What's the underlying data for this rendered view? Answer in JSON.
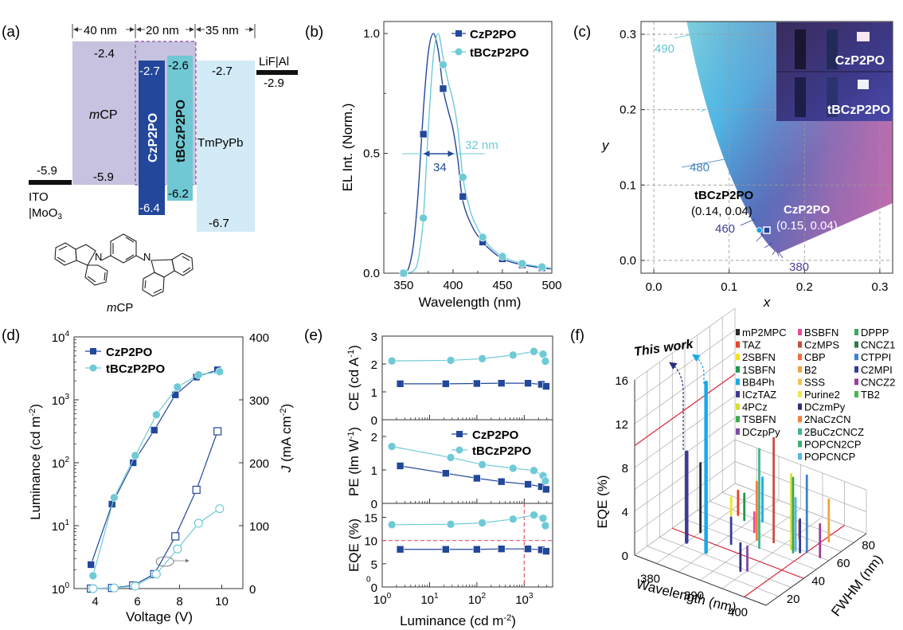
{
  "panel_labels": [
    "(a)",
    "(b)",
    "(c)",
    "(d)",
    "(e)",
    "(f)"
  ],
  "chart_data": [
    {
      "panel": "a",
      "type": "diagram",
      "title": "Energy level diagram",
      "thickness_labels": [
        "40 nm",
        "20 nm",
        "35 nm"
      ],
      "electrodes": [
        {
          "name": "ITO |MoO3",
          "label_line1": "ITO",
          "label_line2": "|MoO",
          "label_sub": "3",
          "level": -5.9,
          "level_label": "-5.9"
        },
        {
          "name": "LiF|Al",
          "label_line1": "LiF|Al",
          "level": -2.9,
          "level_label": "-2.9"
        }
      ],
      "layers": [
        {
          "name": "mCP",
          "label_italic": "m",
          "label_rest": "CP",
          "lumo": -2.4,
          "homo": -5.9,
          "lumo_label": "-2.4",
          "homo_label": "-5.9",
          "color": "#c6c2df"
        },
        {
          "name": "CzP2PO",
          "lumo": -2.7,
          "homo": -6.4,
          "lumo_label": "-2.7",
          "homo_label": "-6.4",
          "color": "#22479b"
        },
        {
          "name": "tBCzP2PO",
          "lumo": -2.6,
          "homo": -6.2,
          "lumo_label": "-2.6",
          "homo_label": "-6.2",
          "color": "#6fc8d3"
        },
        {
          "name": "TmPyPb",
          "lumo": -2.7,
          "homo": -6.7,
          "lumo_label": "-2.7",
          "homo_label": "-6.7",
          "color": "#d3ebf6"
        }
      ],
      "molecule_label_italic": "m",
      "molecule_label_rest": "CP",
      "atom_labels": [
        "N",
        "N"
      ]
    },
    {
      "panel": "b",
      "type": "line",
      "xlabel": "Wavelength (nm)",
      "ylabel": "EL Int. (Norm.)",
      "xlim": [
        330,
        500
      ],
      "ylim": [
        0,
        1.05
      ],
      "xticks": [
        350,
        400,
        450,
        500
      ],
      "yticks": [
        0.0,
        0.5,
        1.0
      ],
      "ytick_labels": [
        "0.0",
        "0.5",
        "1.0"
      ],
      "legend": "top-right",
      "series": [
        {
          "name": "CzP2PO",
          "color": "#22479b",
          "marker": "square",
          "curve_x": [
            350,
            355,
            360,
            365,
            370,
            375,
            380,
            385,
            390,
            395,
            400,
            405,
            410,
            420,
            430,
            440,
            450,
            460,
            470,
            480,
            490,
            500
          ],
          "curve_y": [
            0.0,
            0.02,
            0.12,
            0.35,
            0.68,
            0.92,
            1.0,
            0.93,
            0.77,
            0.68,
            0.6,
            0.47,
            0.3,
            0.19,
            0.13,
            0.09,
            0.06,
            0.045,
            0.035,
            0.028,
            0.022,
            0.018
          ],
          "marker_x": [
            350,
            370,
            390,
            410,
            430,
            450,
            470,
            490
          ],
          "marker_y": [
            0.0,
            0.58,
            0.77,
            0.32,
            0.13,
            0.06,
            0.035,
            0.022
          ]
        },
        {
          "name": "tBCzP2PO",
          "color": "#6fcad6",
          "marker": "circle",
          "curve_x": [
            350,
            360,
            365,
            370,
            375,
            380,
            385,
            390,
            395,
            400,
            405,
            410,
            415,
            420,
            430,
            440,
            450,
            460,
            470,
            480,
            490,
            500
          ],
          "curve_y": [
            0.0,
            0.01,
            0.06,
            0.23,
            0.6,
            0.9,
            1.0,
            0.9,
            0.8,
            0.72,
            0.6,
            0.4,
            0.3,
            0.23,
            0.15,
            0.1,
            0.07,
            0.052,
            0.04,
            0.032,
            0.026,
            0.02
          ],
          "marker_x": [
            350,
            370,
            390,
            410,
            430,
            450,
            470,
            490
          ],
          "marker_y": [
            0.0,
            0.23,
            0.87,
            0.4,
            0.15,
            0.07,
            0.04,
            0.026
          ]
        }
      ],
      "annotations": [
        {
          "text": "34",
          "color": "#22479b"
        },
        {
          "text": "32 nm",
          "color": "#6fcad6"
        }
      ]
    },
    {
      "panel": "c",
      "type": "scatter",
      "xlabel": "x",
      "ylabel": "y",
      "xlim": [
        -0.017,
        0.317
      ],
      "ylim": [
        -0.017,
        0.317
      ],
      "xticks": [
        0.0,
        0.1,
        0.2,
        0.3
      ],
      "yticks": [
        0.0,
        0.1,
        0.2,
        0.3
      ],
      "tick_labels": [
        "0.0",
        "0.1",
        "0.2",
        "0.3"
      ],
      "grid": true,
      "wavelength_labels": [
        {
          "text": "490",
          "color": "#5fc6d6"
        },
        {
          "text": "480",
          "color": "#3b7fc1"
        },
        {
          "text": "460",
          "color": "#3d3f93"
        },
        {
          "text": "380",
          "color": "#4e3f9a"
        }
      ],
      "points": [
        {
          "name": "tBCzP2PO",
          "x": 0.14,
          "y": 0.04,
          "coord_label": "(0.14, 0.04)",
          "color": "#1aa2e0",
          "marker": "circle"
        },
        {
          "name": "CzP2PO",
          "x": 0.15,
          "y": 0.04,
          "coord_label": "(0.15, 0.04)",
          "color": "#22479b",
          "marker": "square"
        }
      ],
      "inset_labels": [
        "CzP2PO",
        "tBCzP2PO"
      ]
    },
    {
      "panel": "d",
      "type": "line",
      "xlabel": "Voltage (V)",
      "ylabel_left": "Luminance (cd m-2)",
      "ylabel_right_italic": "J",
      "ylabel_right_rest": " (mA cm",
      "ylabel_right_sup": "-2",
      "xlim": [
        3,
        11
      ],
      "ylim_left_log10": [
        0,
        4
      ],
      "ylim_right": [
        0,
        400
      ],
      "xticks": [
        4,
        6,
        8,
        10
      ],
      "yticks_left_exp": [
        0,
        1,
        2,
        3,
        4
      ],
      "yticks_right": [
        0,
        100,
        200,
        300,
        400
      ],
      "legend": "top-left",
      "series": [
        {
          "name": "CzP2PO",
          "axis": "left",
          "color": "#22479b",
          "marker": "square",
          "filled": true,
          "x": [
            3.8,
            4.8,
            5.8,
            6.8,
            7.8,
            8.8,
            9.8
          ],
          "y": [
            2.4,
            22,
            100,
            330,
            1200,
            2300,
            3000
          ]
        },
        {
          "name": "tBCzP2PO",
          "axis": "left",
          "color": "#6fcad6",
          "marker": "circle",
          "filled": true,
          "x": [
            3.9,
            4.9,
            5.9,
            6.9,
            7.9,
            8.9,
            9.9
          ],
          "y": [
            1.6,
            28,
            130,
            580,
            1600,
            2500,
            2800
          ]
        },
        {
          "name": "CzP2PO J",
          "axis": "right",
          "color": "#22479b",
          "marker": "square",
          "filled": false,
          "x": [
            3.8,
            4.8,
            5.8,
            6.8,
            7.8,
            8.8,
            9.8
          ],
          "y": [
            0,
            1,
            5,
            23,
            83,
            157,
            250
          ]
        },
        {
          "name": "tBCzP2PO J",
          "axis": "right",
          "color": "#6fcad6",
          "marker": "circle",
          "filled": false,
          "x": [
            3.9,
            4.9,
            5.9,
            6.9,
            7.9,
            8.9,
            9.9
          ],
          "y": [
            0,
            1,
            4,
            23,
            63,
            104,
            127
          ]
        }
      ]
    },
    {
      "panel": "e",
      "type": "line",
      "xlabel": "Luminance (cd m-2)",
      "xlim_log10": [
        0,
        3.6
      ],
      "xticks_exp": [
        0,
        1,
        2,
        3
      ],
      "legend": "middle-panel top-right",
      "subplots": [
        {
          "ylabel": "CE (cd A-1)",
          "ylabel_main": "CE (cd A",
          "ylabel_sup": "-1",
          "ylabel_end": ")",
          "ylim": [
            0,
            3
          ],
          "yticks": [
            0,
            1,
            2,
            3
          ],
          "series": [
            {
              "name": "CzP2PO",
              "x": [
                2.4,
                22,
                100,
                330,
                1200,
                2300,
                2900
              ],
              "y": [
                1.29,
                1.29,
                1.3,
                1.31,
                1.31,
                1.27,
                1.2
              ]
            },
            {
              "name": "tBCzP2PO",
              "x": [
                1.6,
                28,
                130,
                580,
                1600,
                2500,
                2800
              ],
              "y": [
                2.11,
                2.13,
                2.19,
                2.32,
                2.45,
                2.35,
                2.1
              ]
            }
          ]
        },
        {
          "ylabel": "PE (lm W-1)",
          "ylabel_main": "PE (lm W",
          "ylabel_sup": "-1",
          "ylabel_end": ")",
          "ylim": [
            0,
            2.5
          ],
          "yticks": [
            0,
            1,
            2
          ],
          "series": [
            {
              "name": "CzP2PO",
              "x": [
                2.4,
                22,
                100,
                330,
                1200,
                2300,
                2900
              ],
              "y": [
                1.12,
                0.9,
                0.75,
                0.65,
                0.57,
                0.5,
                0.42
              ]
            },
            {
              "name": "tBCzP2PO",
              "x": [
                1.6,
                28,
                130,
                580,
                1600,
                2500,
                2800
              ],
              "y": [
                1.7,
                1.37,
                1.16,
                1.05,
                0.98,
                0.83,
                0.67
              ]
            }
          ]
        },
        {
          "ylabel": "EQE (%)",
          "ylabel_main": "EQE (%)",
          "ylabel_sup": "",
          "ylabel_end": "",
          "ylim": [
            0,
            18
          ],
          "yticks": [
            0,
            5,
            10,
            15
          ],
          "extra_tick_label": "0",
          "reference_lines": {
            "hline": 10,
            "vline": 1000,
            "color": "#e05a6b"
          },
          "series": [
            {
              "name": "CzP2PO",
              "x": [
                2.4,
                22,
                100,
                330,
                1200,
                2300,
                2900
              ],
              "y": [
                8.1,
                8.1,
                8.1,
                8.2,
                8.2,
                8.0,
                7.7
              ]
            },
            {
              "name": "tBCzP2PO",
              "x": [
                1.6,
                28,
                130,
                580,
                1600,
                2500,
                2800
              ],
              "y": [
                13.4,
                13.5,
                13.8,
                14.6,
                15.5,
                14.8,
                13.2
              ]
            }
          ]
        }
      ],
      "series_styles": [
        {
          "name": "CzP2PO",
          "color": "#22479b",
          "marker": "square"
        },
        {
          "name": "tBCzP2PO",
          "color": "#6fcad6",
          "marker": "circle"
        }
      ]
    },
    {
      "panel": "f",
      "type": "bar3d",
      "xlabel": "Wavelength (nm)",
      "ylabel": "FWHM (nm)",
      "zlabel": "EQE (%)",
      "xlim": [
        375,
        405
      ],
      "ylim": [
        10,
        90
      ],
      "zlim": [
        0,
        16
      ],
      "xticks": [
        380,
        390,
        400
      ],
      "yticks": [
        20,
        40,
        60,
        80
      ],
      "zticks": [
        0,
        4,
        8,
        12,
        16
      ],
      "annotation": "This work",
      "threshold_lines": {
        "eqe": 10,
        "wavelength": 400,
        "fwhm": 40,
        "color": "#d9233a"
      },
      "legend_columns": [
        [
          {
            "name": "mP2MPC",
            "color": "#2b2b2b"
          },
          {
            "name": "TAZ",
            "color": "#e8432b"
          },
          {
            "name": "2SBFN",
            "color": "#f2e21c"
          },
          {
            "name": "1SBFN",
            "color": "#1d9a4a"
          },
          {
            "name": "BB4Ph",
            "color": "#1aa9e6"
          },
          {
            "name": "ICzTAZ",
            "color": "#3d3b95"
          },
          {
            "name": "4PCz",
            "color": "#d6e02a"
          },
          {
            "name": "TSBFN",
            "color": "#3cae4d"
          },
          {
            "name": "DCzpPy",
            "color": "#7d4aa7"
          }
        ],
        [
          {
            "name": "BSBFN",
            "color": "#ea4c95"
          },
          {
            "name": "CzMPS",
            "color": "#c8503e"
          },
          {
            "name": "CBP",
            "color": "#ef6a4a"
          },
          {
            "name": "B2",
            "color": "#f4a23a"
          },
          {
            "name": "SSS",
            "color": "#f6c05e"
          },
          {
            "name": "Purine2",
            "color": "#f2e84e"
          },
          {
            "name": "DCzmPy",
            "color": "#2e3180"
          },
          {
            "name": "2NaCzCN",
            "color": "#f08040"
          },
          {
            "name": "2BuCzCNCZ",
            "color": "#42b48a"
          },
          {
            "name": "POPCN2CP",
            "color": "#3caf6e"
          },
          {
            "name": "POPCNCP",
            "color": "#5bb4e6"
          }
        ],
        [
          {
            "name": "DPPP",
            "color": "#3da760"
          },
          {
            "name": "CNCZ1",
            "color": "#2e7a4e"
          },
          {
            "name": "CTPPI",
            "color": "#3f82cf"
          },
          {
            "name": "C2MPI",
            "color": "#343b93"
          },
          {
            "name": "CNCZ2",
            "color": "#9b3f9a"
          },
          {
            "name": "TB2",
            "color": "#47b84b"
          }
        ]
      ],
      "bars": [
        {
          "name": "CzP2PO (this work)",
          "wavelength": 380,
          "fwhm": 34,
          "eqe": 8.2,
          "color": "#3d3b95",
          "highlight": true
        },
        {
          "name": "tBCzP2PO (this work)",
          "wavelength": 385,
          "fwhm": 32,
          "eqe": 15.5,
          "color": "#1aa9e6",
          "highlight": true
        },
        {
          "name": "mP2MPC",
          "wavelength": 380,
          "fwhm": 45,
          "eqe": 6.3,
          "color": "#2b2b2b"
        },
        {
          "name": "TAZ",
          "wavelength": 382,
          "fwhm": 68,
          "eqe": 2.2,
          "color": "#e8432b"
        },
        {
          "name": "2SBFN",
          "wavelength": 381,
          "fwhm": 66,
          "eqe": 1.6,
          "color": "#f2e21c"
        },
        {
          "name": "1SBFN",
          "wavelength": 384,
          "fwhm": 66,
          "eqe": 2.4,
          "color": "#1d9a4a"
        },
        {
          "name": "ICzTAZ",
          "wavelength": 387,
          "fwhm": 45,
          "eqe": 2.4,
          "color": "#3d3b95"
        },
        {
          "name": "BSBFN",
          "wavelength": 388,
          "fwhm": 60,
          "eqe": 1.8,
          "color": "#ea4c95"
        },
        {
          "name": "BB4Ph",
          "wavelength": 387,
          "fwhm": 70,
          "eqe": 4.0,
          "color": "#1aa9e6"
        },
        {
          "name": "2NaCzCN",
          "wavelength": 390,
          "fwhm": 55,
          "eqe": 5.3,
          "color": "#f08040"
        },
        {
          "name": "DCzmPy",
          "wavelength": 394,
          "fwhm": 28,
          "eqe": 2.5,
          "color": "#2e3180"
        },
        {
          "name": "DCzpPy",
          "wavelength": 395,
          "fwhm": 30,
          "eqe": 2.2,
          "color": "#7d4aa7"
        },
        {
          "name": "2BuCzCNCZ",
          "wavelength": 392,
          "fwhm": 50,
          "eqe": 9.0,
          "color": "#42b48a"
        },
        {
          "name": "CzMPS",
          "wavelength": 393,
          "fwhm": 58,
          "eqe": 9.5,
          "color": "#c8503e"
        },
        {
          "name": "CBP",
          "wavelength": 396,
          "fwhm": 68,
          "eqe": 1.6,
          "color": "#ef6a4a"
        },
        {
          "name": "4PCz",
          "wavelength": 397,
          "fwhm": 58,
          "eqe": 6.8,
          "color": "#d6e02a"
        },
        {
          "name": "Purine2",
          "wavelength": 396,
          "fwhm": 62,
          "eqe": 1.0,
          "color": "#f2e84e"
        },
        {
          "name": "DPPP",
          "wavelength": 398,
          "fwhm": 56,
          "eqe": 6.8,
          "color": "#3da760"
        },
        {
          "name": "POPCNCP",
          "wavelength": 398,
          "fwhm": 58,
          "eqe": 4.8,
          "color": "#5bb4e6"
        },
        {
          "name": "CTPPI",
          "wavelength": 400,
          "fwhm": 60,
          "eqe": 7.0,
          "color": "#3f82cf"
        },
        {
          "name": "C2MPI",
          "wavelength": 399,
          "fwhm": 58,
          "eqe": 3.0,
          "color": "#343b93"
        },
        {
          "name": "B2",
          "wavelength": 401,
          "fwhm": 74,
          "eqe": 3.8,
          "color": "#f4a23a"
        },
        {
          "name": "CNCZ2",
          "wavelength": 403,
          "fwhm": 60,
          "eqe": 3.0,
          "color": "#9b3f9a"
        }
      ]
    }
  ]
}
